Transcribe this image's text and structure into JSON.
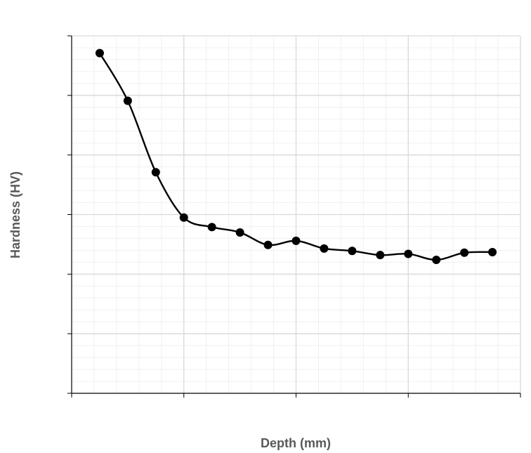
{
  "chart_data": {
    "type": "line",
    "title": "",
    "xlabel": "Depth (mm)",
    "ylabel": "Hardness (HV)",
    "xlim": [
      0,
      0.8
    ],
    "ylim": [
      0,
      600
    ],
    "x_ticks": [
      "0",
      "0.2",
      "0.4",
      "0.6",
      "0.8"
    ],
    "y_ticks": [
      "0",
      "100",
      "200",
      "300",
      "400",
      "500",
      "600"
    ],
    "grid": true,
    "smooth": true,
    "marker": "circle",
    "line_color": "#000000",
    "series": [
      {
        "x": [
          0.05,
          0.1,
          0.15,
          0.2,
          0.25,
          0.3,
          0.35,
          0.4,
          0.45,
          0.5,
          0.55,
          0.6,
          0.65,
          0.7,
          0.75
        ],
        "values": [
          571,
          491,
          371,
          295,
          279,
          270,
          249,
          256,
          243,
          239,
          232,
          234,
          224,
          236,
          237
        ]
      }
    ]
  }
}
